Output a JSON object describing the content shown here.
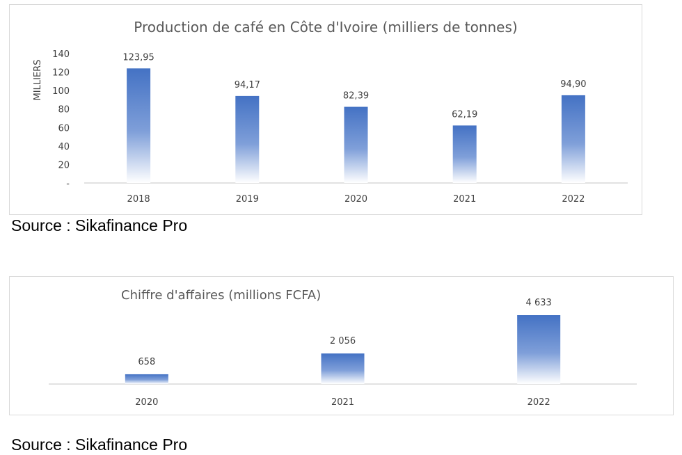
{
  "colors": {
    "bar_top": "#4472c4",
    "bar_bottom": "#ffffff",
    "axis": "#d9d9d9",
    "text": "#404040",
    "title": "#595959"
  },
  "chart_data": [
    {
      "type": "bar",
      "title": "Production de café en Côte d'Ivoire (milliers de tonnes)",
      "ylabel": "MILLIERS",
      "xlabel": "",
      "categories": [
        "2018",
        "2019",
        "2020",
        "2021",
        "2022"
      ],
      "values": [
        123.95,
        94.17,
        82.39,
        62.19,
        94.9
      ],
      "value_labels": [
        "123,95",
        "94,17",
        "82,39",
        "62,19",
        "94,90"
      ],
      "ylim": [
        0,
        140
      ],
      "yticks": [
        0,
        20,
        40,
        60,
        80,
        100,
        120,
        140
      ],
      "ytick_labels": [
        "-",
        "20",
        "40",
        "60",
        "80",
        "100",
        "120",
        "140"
      ],
      "grid": false,
      "legend": "none"
    },
    {
      "type": "bar",
      "title": "Chiffre d'affaires (millions FCFA)",
      "ylabel": "",
      "xlabel": "",
      "categories": [
        "2020",
        "2021",
        "2022"
      ],
      "values": [
        658,
        2056,
        4633
      ],
      "value_labels": [
        "658",
        "2 056",
        "4 633"
      ],
      "grid": false,
      "legend": "none"
    }
  ],
  "sources": [
    "Source : Sikafinance Pro",
    "Source : Sikafinance Pro"
  ]
}
